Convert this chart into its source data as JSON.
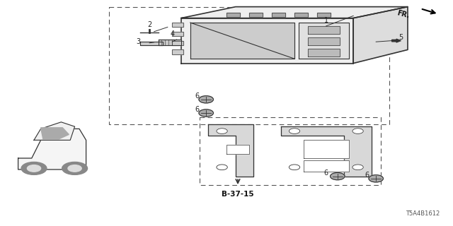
{
  "bg_color": "#ffffff",
  "line_color": "#333333",
  "dashed_color": "#555555",
  "fr_label": "FR.",
  "ref_code": "T5A4B1612",
  "b_ref": "B-37-15",
  "figsize": [
    6.4,
    3.2
  ],
  "dpi": 100
}
